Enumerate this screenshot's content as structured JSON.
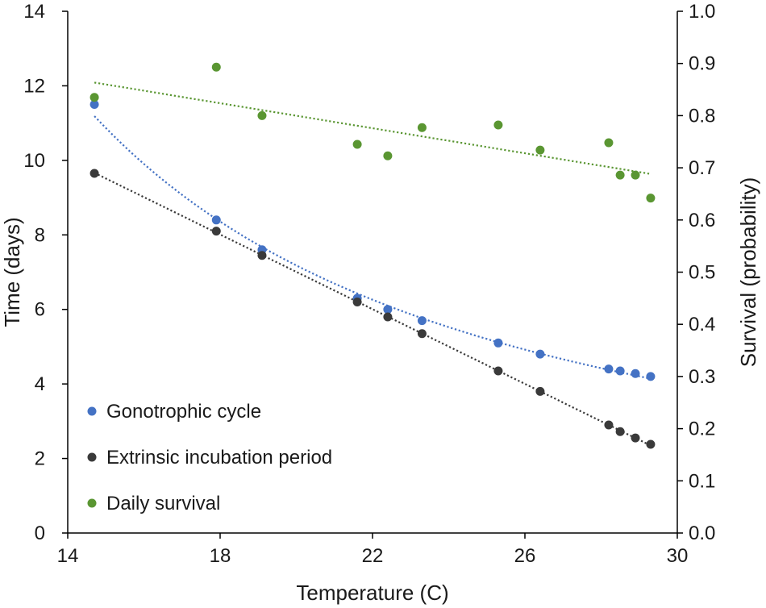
{
  "chart_data": {
    "type": "scatter",
    "title": "",
    "xlabel": "Temperature (C)",
    "ylabel_left": "Time (days)",
    "ylabel_right": "Survival (probability)",
    "xlim": [
      14,
      30
    ],
    "xticks": [
      14,
      18,
      22,
      26,
      30
    ],
    "ylim_left": [
      0,
      14
    ],
    "yticks_left": [
      0,
      2,
      4,
      6,
      8,
      10,
      12,
      14
    ],
    "ylim_right": [
      0,
      1
    ],
    "yticks_right": [
      "0.0",
      "0.1",
      "0.2",
      "0.3",
      "0.4",
      "0.5",
      "0.6",
      "0.7",
      "0.8",
      "0.9",
      "1.0"
    ],
    "grid": false,
    "legend_position": "bottom-left",
    "series": [
      {
        "name": "Gonotrophic cycle",
        "axis": "left",
        "color": "#4472c4",
        "trendline": "power",
        "x": [
          14.7,
          17.9,
          19.1,
          21.6,
          22.4,
          23.3,
          25.3,
          26.4,
          28.2,
          28.5,
          28.9,
          29.3
        ],
        "y": [
          11.5,
          8.4,
          7.6,
          6.3,
          6.0,
          5.7,
          5.1,
          4.8,
          4.4,
          4.35,
          4.28,
          4.2
        ]
      },
      {
        "name": "Extrinsic incubation period",
        "axis": "left",
        "color": "#3a3a3a",
        "trendline": "linear",
        "x": [
          14.7,
          17.9,
          19.1,
          21.6,
          22.4,
          23.3,
          25.3,
          26.4,
          28.2,
          28.5,
          28.9,
          29.3
        ],
        "y": [
          9.65,
          8.1,
          7.45,
          6.2,
          5.8,
          5.35,
          4.35,
          3.8,
          2.9,
          2.72,
          2.55,
          2.38
        ]
      },
      {
        "name": "Daily survival",
        "axis": "right",
        "color": "#5a9632",
        "trendline": "linear",
        "x": [
          14.7,
          17.9,
          19.1,
          21.6,
          22.4,
          23.3,
          25.3,
          26.4,
          28.2,
          28.5,
          28.9,
          29.3
        ],
        "y": [
          0.835,
          0.893,
          0.8,
          0.745,
          0.723,
          0.777,
          0.782,
          0.734,
          0.748,
          0.686,
          0.686,
          0.642
        ]
      }
    ]
  }
}
